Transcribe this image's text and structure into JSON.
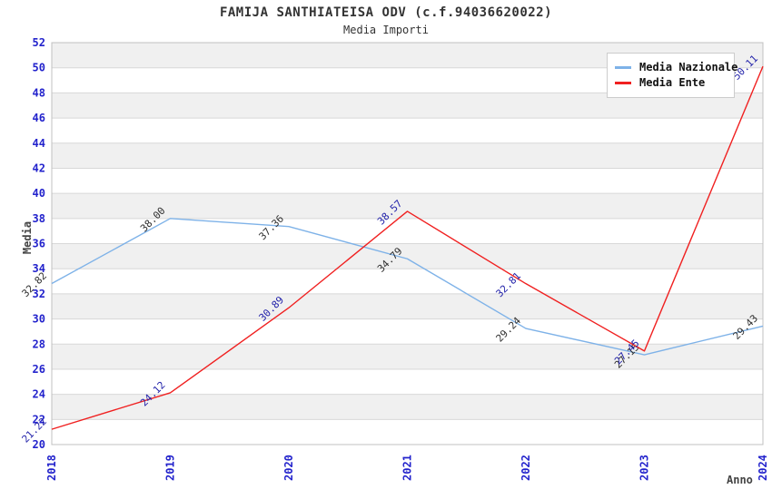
{
  "title": "FAMIJA SANTHIATEISA ODV (c.f.94036620022)",
  "subtitle": "Media Importi",
  "chart_data": {
    "type": "line",
    "x": [
      "2018",
      "2019",
      "2020",
      "2021",
      "2022",
      "2023",
      "2024"
    ],
    "series": [
      {
        "name": "Media Nazionale",
        "color": "#7eb2e8",
        "label_color": "#303030",
        "values": [
          32.82,
          38.0,
          37.36,
          34.79,
          29.24,
          27.15,
          29.43
        ]
      },
      {
        "name": "Media Ente",
        "color": "#f02020",
        "label_color": "#2323aa",
        "values": [
          21.22,
          24.12,
          30.89,
          38.57,
          32.81,
          27.45,
          50.11
        ]
      }
    ],
    "xlabel": "Anno",
    "ylabel": "Media",
    "ylim": [
      20,
      52
    ],
    "ytick_step": 2,
    "grid": true,
    "legend_position": "top-right",
    "value_label_decimals": 2,
    "colors": {
      "tick_text": "#2323cc",
      "band": "#f0f0f0",
      "gridline": "#d8d8d8",
      "plot_border": "#c0c0c0",
      "title_text": "#333333",
      "axis_title_text": "#444444"
    }
  }
}
